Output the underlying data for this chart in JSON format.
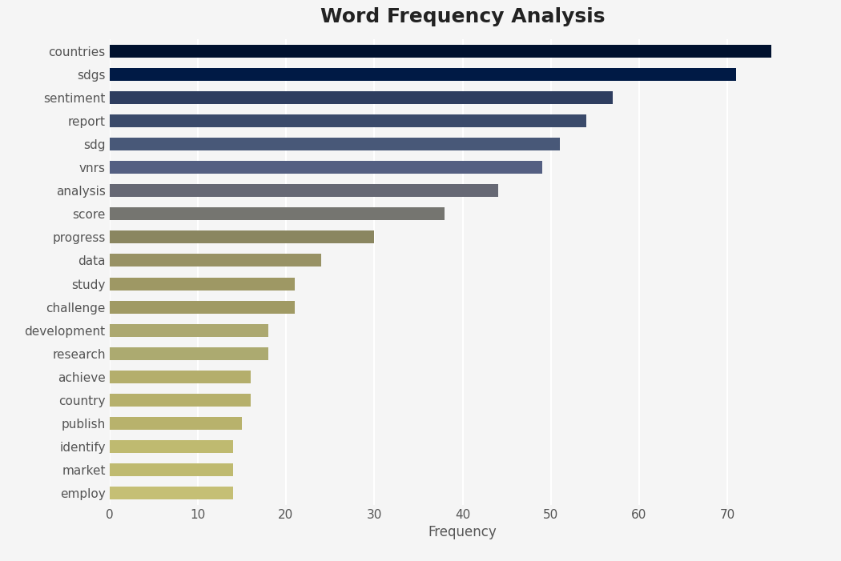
{
  "categories": [
    "countries",
    "sdgs",
    "sentiment",
    "report",
    "sdg",
    "vnrs",
    "analysis",
    "score",
    "progress",
    "data",
    "study",
    "challenge",
    "development",
    "research",
    "achieve",
    "country",
    "publish",
    "identify",
    "market",
    "employ"
  ],
  "values": [
    75,
    71,
    57,
    54,
    51,
    49,
    44,
    38,
    30,
    24,
    21,
    21,
    18,
    18,
    16,
    16,
    15,
    14,
    14,
    14
  ],
  "bar_colors": [
    "#00112e",
    "#001a45",
    "#2e3d5f",
    "#3a4a6a",
    "#485878",
    "#545f82",
    "#666874",
    "#757570",
    "#8a8660",
    "#989265",
    "#9e9864",
    "#a09a64",
    "#aca870",
    "#acaa70",
    "#b4ae6c",
    "#b6b06c",
    "#b8b26c",
    "#bfba70",
    "#bfba70",
    "#c5bf75"
  ],
  "title": "Word Frequency Analysis",
  "xlabel": "Frequency",
  "ylabel": "",
  "xlim": [
    0,
    80
  ],
  "xticks": [
    0,
    10,
    20,
    30,
    40,
    50,
    60,
    70
  ],
  "title_fontsize": 18,
  "xlabel_fontsize": 12,
  "label_fontsize": 11,
  "background_color": "#f5f5f5",
  "axes_background": "#f5f5f5",
  "bar_height": 0.55,
  "grid_color": "#ffffff",
  "grid_linewidth": 1.5,
  "tick_label_color": "#555555",
  "title_color": "#222222"
}
